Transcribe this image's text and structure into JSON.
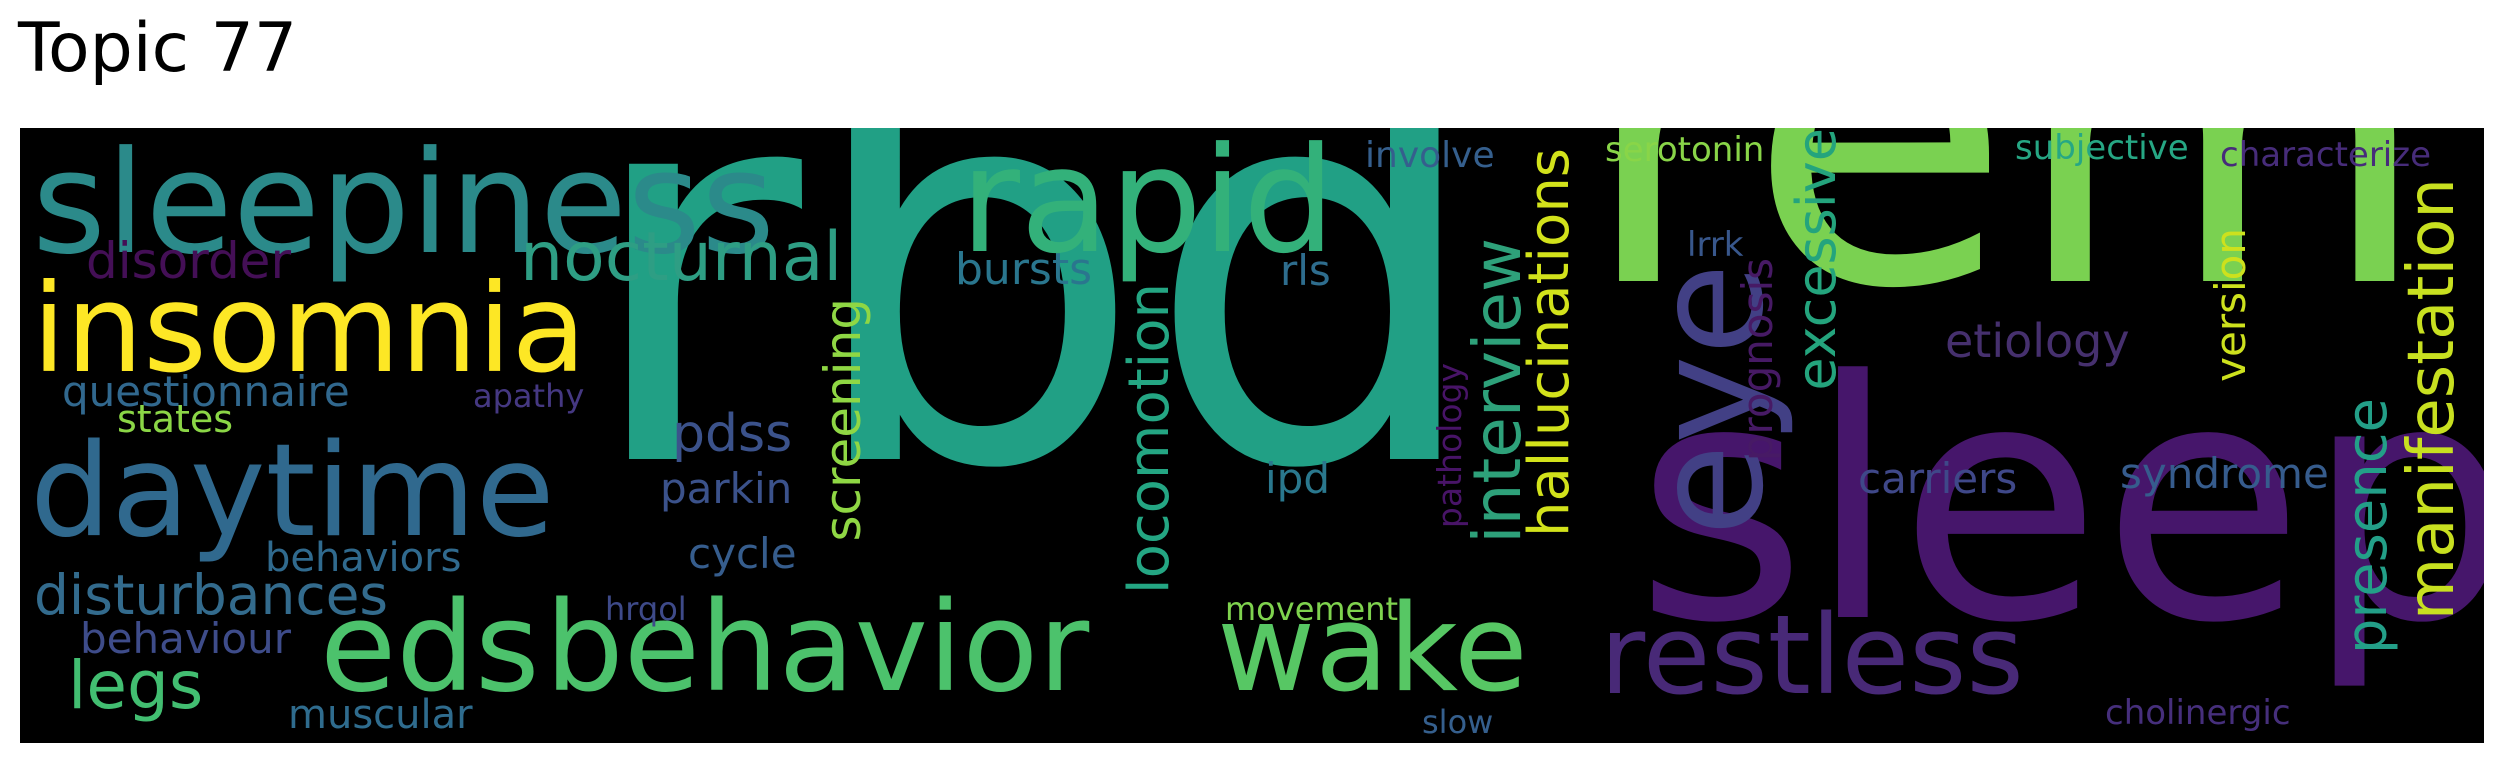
{
  "title": "Topic 77",
  "chart_data": {
    "type": "wordcloud",
    "title": "Topic 77",
    "words": [
      {
        "text": "rbd",
        "weight": 1.0,
        "color": "#21a085"
      },
      {
        "text": "rem",
        "weight": 0.9,
        "color": "#7ad151"
      },
      {
        "text": "sleep",
        "weight": 0.78,
        "color": "#46166b"
      },
      {
        "text": "sleepiness",
        "weight": 0.45,
        "color": "#2b8a8a"
      },
      {
        "text": "rapid",
        "weight": 0.45,
        "color": "#33b17a"
      },
      {
        "text": "insomnia",
        "weight": 0.44,
        "color": "#fde725"
      },
      {
        "text": "daytime",
        "weight": 0.44,
        "color": "#30698e"
      },
      {
        "text": "eds",
        "weight": 0.42,
        "color": "#4cc26c"
      },
      {
        "text": "behavior",
        "weight": 0.42,
        "color": "#4cc26c"
      },
      {
        "text": "wake",
        "weight": 0.42,
        "color": "#57c764"
      },
      {
        "text": "restless",
        "weight": 0.35,
        "color": "#482977"
      },
      {
        "text": "eye",
        "weight": 0.34,
        "color": "#424085"
      },
      {
        "text": "manifestation",
        "weight": 0.22,
        "color": "#c8e020"
      },
      {
        "text": "interview",
        "weight": 0.22,
        "color": "#2ea17a"
      },
      {
        "text": "hallucinations",
        "weight": 0.2,
        "color": "#d2e21b"
      },
      {
        "text": "excessive",
        "weight": 0.2,
        "color": "#24a47d"
      },
      {
        "text": "nocturnal",
        "weight": 0.2,
        "color": "#2e9e84"
      },
      {
        "text": "screening",
        "weight": 0.19,
        "color": "#8fd744"
      },
      {
        "text": "locomotion",
        "weight": 0.19,
        "color": "#24a683"
      },
      {
        "text": "presence",
        "weight": 0.19,
        "color": "#239f88"
      },
      {
        "text": "disturbances",
        "weight": 0.19,
        "color": "#336b8d"
      },
      {
        "text": "legs",
        "weight": 0.19,
        "color": "#42be71"
      },
      {
        "text": "disorder",
        "weight": 0.17,
        "color": "#440f56"
      },
      {
        "text": "pdss",
        "weight": 0.17,
        "color": "#3b528b"
      },
      {
        "text": "etiology",
        "weight": 0.15,
        "color": "#46306e"
      },
      {
        "text": "questionnaire",
        "weight": 0.15,
        "color": "#31688e"
      },
      {
        "text": "syndrome",
        "weight": 0.14,
        "color": "#365c8d"
      },
      {
        "text": "carriers",
        "weight": 0.14,
        "color": "#3f4889"
      },
      {
        "text": "prognosis",
        "weight": 0.14,
        "color": "#471a65"
      },
      {
        "text": "behaviour",
        "weight": 0.14,
        "color": "#3e4c8a"
      },
      {
        "text": "behaviors",
        "weight": 0.14,
        "color": "#306a8e"
      },
      {
        "text": "states",
        "weight": 0.14,
        "color": "#8bd646"
      },
      {
        "text": "parkin",
        "weight": 0.14,
        "color": "#3b528b"
      },
      {
        "text": "cycle",
        "weight": 0.14,
        "color": "#365d8d"
      },
      {
        "text": "muscular",
        "weight": 0.14,
        "color": "#2f6c8e"
      },
      {
        "text": "bursts",
        "weight": 0.14,
        "color": "#2a768e"
      },
      {
        "text": "ipd",
        "weight": 0.14,
        "color": "#2a788e"
      },
      {
        "text": "rls",
        "weight": 0.14,
        "color": "#2e6d8e"
      },
      {
        "text": "version",
        "weight": 0.13,
        "color": "#cde11d"
      },
      {
        "text": "serotonin",
        "weight": 0.12,
        "color": "#89d548"
      },
      {
        "text": "subjective",
        "weight": 0.12,
        "color": "#26a784"
      },
      {
        "text": "characterize",
        "weight": 0.11,
        "color": "#472c7a"
      },
      {
        "text": "involve",
        "weight": 0.11,
        "color": "#355f8d"
      },
      {
        "text": "lrrk",
        "weight": 0.11,
        "color": "#38578c"
      },
      {
        "text": "apathy",
        "weight": 0.11,
        "color": "#453882"
      },
      {
        "text": "hrqol",
        "weight": 0.11,
        "color": "#3e4a89"
      },
      {
        "text": "movement",
        "weight": 0.11,
        "color": "#7fd34e"
      },
      {
        "text": "cholinergic",
        "weight": 0.11,
        "color": "#462f7c"
      },
      {
        "text": "slow",
        "weight": 0.1,
        "color": "#355f8d"
      },
      {
        "text": "pathology",
        "weight": 0.1,
        "color": "#481467"
      }
    ]
  }
}
